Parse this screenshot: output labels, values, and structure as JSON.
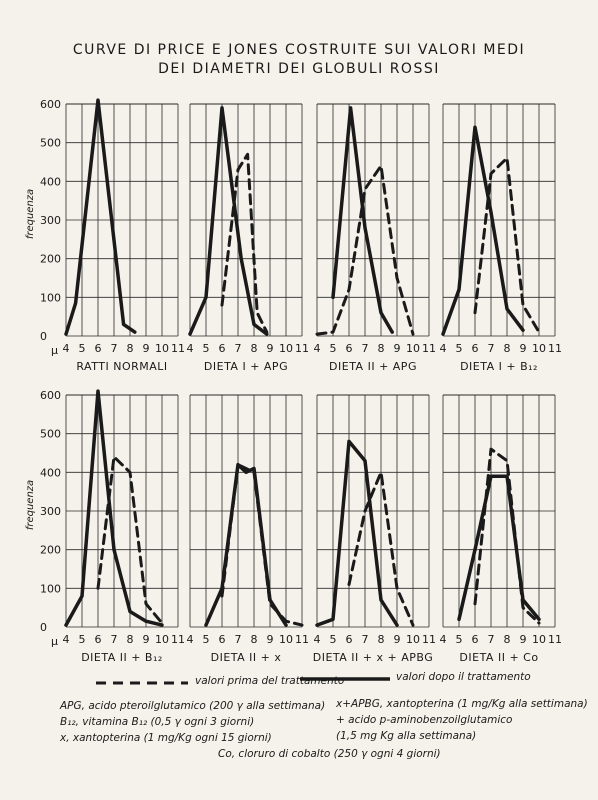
{
  "title": {
    "line1": "CURVE DI PRICE E JONES COSTRUITE SUI VALORI MEDI",
    "line2": "DEI DIAMETRI DEI GLOBULI ROSSI"
  },
  "colors": {
    "ink": "#1a1a1a",
    "paper": "#f4f2ea",
    "grid": "#2a2a2a"
  },
  "legend": {
    "dashed_label": "valori prima del trattamento",
    "solid_label": "valori dopo il trattamento"
  },
  "notes": {
    "apg": "APG, acido pteroilglutamico (200 γ alla settimana)",
    "b12": "B₁₂, vitamina B₁₂ (0,5 γ ogni 3 giorni)",
    "x": "x, xantopterina (1 mg/Kg ogni 15 giorni)",
    "apbg1": "x+APBG, xantopterina (1 mg/Kg alla settimana)",
    "apbg2": "+ acido p-aminobenzoilglutamico",
    "apbg3": "(1,5 mg Kg alla settimana)",
    "co": "Co, cloruro di cobalto (250 γ ogni 4 giorni)"
  },
  "chart_data": [
    {
      "type": "line",
      "label": "RATTI NORMALI",
      "ylabel": "frequenza",
      "xlabel_unit": "μ",
      "xlim": [
        4,
        11
      ],
      "ylim": [
        0,
        600
      ],
      "xticks": [
        4,
        5,
        6,
        7,
        8,
        9,
        10,
        11
      ],
      "yticks": [
        0,
        100,
        200,
        300,
        400,
        500,
        600
      ],
      "series": [
        {
          "style": "solid",
          "x": [
            4,
            4.6,
            6,
            7.6,
            8.3
          ],
          "y": [
            5,
            85,
            610,
            30,
            10
          ]
        }
      ]
    },
    {
      "type": "line",
      "label": "DIETA I + APG",
      "xlim": [
        4,
        11
      ],
      "ylim": [
        0,
        600
      ],
      "xticks": [
        4,
        5,
        6,
        7,
        8,
        9,
        10,
        11
      ],
      "yticks": [
        0,
        100,
        200,
        300,
        400,
        500,
        600
      ],
      "series": [
        {
          "style": "dashed",
          "x": [
            6,
            7,
            7.6,
            8.2,
            8.8
          ],
          "y": [
            80,
            430,
            470,
            60,
            10
          ]
        },
        {
          "style": "solid",
          "x": [
            4,
            5,
            6,
            7.2,
            8,
            8.8
          ],
          "y": [
            5,
            100,
            590,
            200,
            30,
            5
          ]
        }
      ]
    },
    {
      "type": "line",
      "label": "DIETA II + APG",
      "xlim": [
        4,
        11
      ],
      "ylim": [
        0,
        600
      ],
      "xticks": [
        4,
        5,
        6,
        7,
        8,
        9,
        10,
        11
      ],
      "yticks": [
        0,
        100,
        200,
        300,
        400,
        500,
        600
      ],
      "series": [
        {
          "style": "dashed",
          "x": [
            4,
            5,
            6,
            7,
            8,
            9,
            10
          ],
          "y": [
            5,
            10,
            120,
            380,
            440,
            150,
            5
          ]
        },
        {
          "style": "solid",
          "x": [
            5,
            6.1,
            7,
            8,
            8.7
          ],
          "y": [
            100,
            590,
            280,
            60,
            10
          ]
        }
      ]
    },
    {
      "type": "line",
      "label": "DIETA I + B₁₂",
      "xlim": [
        4,
        11
      ],
      "ylim": [
        0,
        600
      ],
      "xticks": [
        4,
        5,
        6,
        7,
        8,
        9,
        10,
        11
      ],
      "yticks": [
        0,
        100,
        200,
        300,
        400,
        500,
        600
      ],
      "series": [
        {
          "style": "dashed",
          "x": [
            6,
            7,
            8,
            9,
            10
          ],
          "y": [
            60,
            420,
            460,
            80,
            10
          ]
        },
        {
          "style": "solid",
          "x": [
            4,
            5,
            6,
            7,
            8,
            9
          ],
          "y": [
            5,
            120,
            540,
            320,
            70,
            15
          ]
        }
      ]
    },
    {
      "type": "line",
      "label": "DIETA II + B₁₂",
      "ylabel": "frequenza",
      "xlabel_unit": "μ",
      "xlim": [
        4,
        11
      ],
      "ylim": [
        0,
        600
      ],
      "xticks": [
        4,
        5,
        6,
        7,
        8,
        9,
        10,
        11
      ],
      "yticks": [
        0,
        100,
        200,
        300,
        400,
        500,
        600
      ],
      "series": [
        {
          "style": "dashed",
          "x": [
            6,
            7,
            8,
            9,
            10
          ],
          "y": [
            100,
            440,
            400,
            60,
            10
          ]
        },
        {
          "style": "solid",
          "x": [
            4,
            5,
            6,
            7,
            8,
            9,
            10
          ],
          "y": [
            5,
            80,
            610,
            200,
            40,
            15,
            5
          ]
        }
      ]
    },
    {
      "type": "line",
      "label": "DIETA II + x",
      "xlim": [
        4,
        11
      ],
      "ylim": [
        0,
        600
      ],
      "xticks": [
        4,
        5,
        6,
        7,
        8,
        9,
        10,
        11
      ],
      "yticks": [
        0,
        100,
        200,
        300,
        400,
        500,
        600
      ],
      "series": [
        {
          "style": "dashed",
          "x": [
            6,
            7,
            8,
            9,
            10,
            11
          ],
          "y": [
            80,
            420,
            400,
            60,
            15,
            5
          ]
        },
        {
          "style": "solid",
          "x": [
            5,
            6,
            7,
            7.5,
            8,
            9,
            10
          ],
          "y": [
            5,
            100,
            420,
            400,
            410,
            70,
            5
          ]
        }
      ]
    },
    {
      "type": "line",
      "label": "DIETA II + x + APBG",
      "xlim": [
        4,
        11
      ],
      "ylim": [
        0,
        600
      ],
      "xticks": [
        4,
        5,
        6,
        7,
        8,
        9,
        10,
        11
      ],
      "yticks": [
        0,
        100,
        200,
        300,
        400,
        500,
        600
      ],
      "series": [
        {
          "style": "dashed",
          "x": [
            6,
            7,
            8,
            9,
            10
          ],
          "y": [
            110,
            300,
            400,
            100,
            5
          ]
        },
        {
          "style": "solid",
          "x": [
            4,
            5,
            6,
            7,
            8,
            9
          ],
          "y": [
            5,
            20,
            480,
            430,
            70,
            5
          ]
        }
      ]
    },
    {
      "type": "line",
      "label": "DIETA II + Co",
      "xlim": [
        4,
        11
      ],
      "ylim": [
        0,
        600
      ],
      "xticks": [
        4,
        5,
        6,
        7,
        8,
        9,
        10,
        11
      ],
      "yticks": [
        0,
        100,
        200,
        300,
        400,
        500,
        600
      ],
      "series": [
        {
          "style": "dashed",
          "x": [
            6,
            7,
            8,
            9,
            10
          ],
          "y": [
            60,
            460,
            430,
            50,
            10
          ]
        },
        {
          "style": "solid",
          "x": [
            5,
            6,
            7,
            8,
            9,
            10
          ],
          "y": [
            20,
            200,
            390,
            390,
            70,
            20
          ]
        }
      ]
    }
  ]
}
